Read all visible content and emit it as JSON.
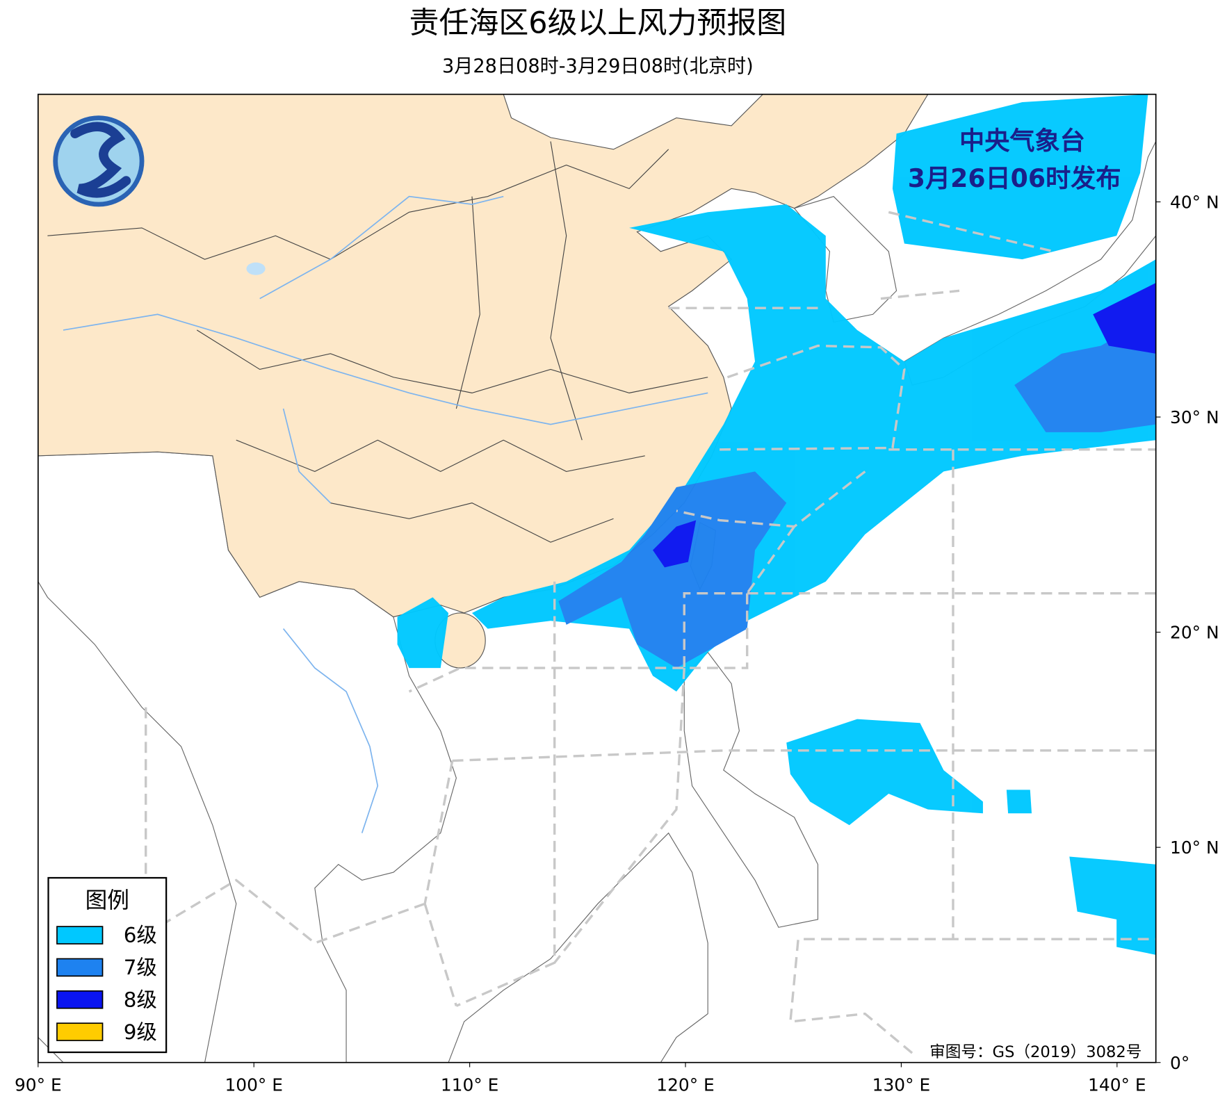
{
  "title": "责任海区6级以上风力预报图",
  "subtitle": "3月28日08时-3月29日08时(北京时)",
  "publisher": "中央气象台",
  "issued": "3月26日06时发布",
  "review_number": "审图号：GS（2019）3082号",
  "legend": {
    "title": "图例",
    "items": [
      {
        "label": "6级",
        "color": "#00c8ff"
      },
      {
        "label": "7级",
        "color": "#1e82f0"
      },
      {
        "label": "8级",
        "color": "#0a14f0"
      },
      {
        "label": "9级",
        "color": "#ffcc00"
      }
    ]
  },
  "map": {
    "xlim": [
      90,
      141.8
    ],
    "ylim": [
      0,
      45
    ],
    "xticks": [
      {
        "value": 90,
        "label": "90° E"
      },
      {
        "value": 100,
        "label": "100° E"
      },
      {
        "value": 110,
        "label": "110° E"
      },
      {
        "value": 120,
        "label": "120° E"
      },
      {
        "value": 130,
        "label": "130° E"
      },
      {
        "value": 140,
        "label": "140° E"
      }
    ],
    "yticks": [
      {
        "value": 0,
        "label": "0°"
      },
      {
        "value": 10,
        "label": "10° N"
      },
      {
        "value": 20,
        "label": "20° N"
      },
      {
        "value": 30,
        "label": "30° N"
      },
      {
        "value": 40,
        "label": "40° N"
      }
    ]
  }
}
